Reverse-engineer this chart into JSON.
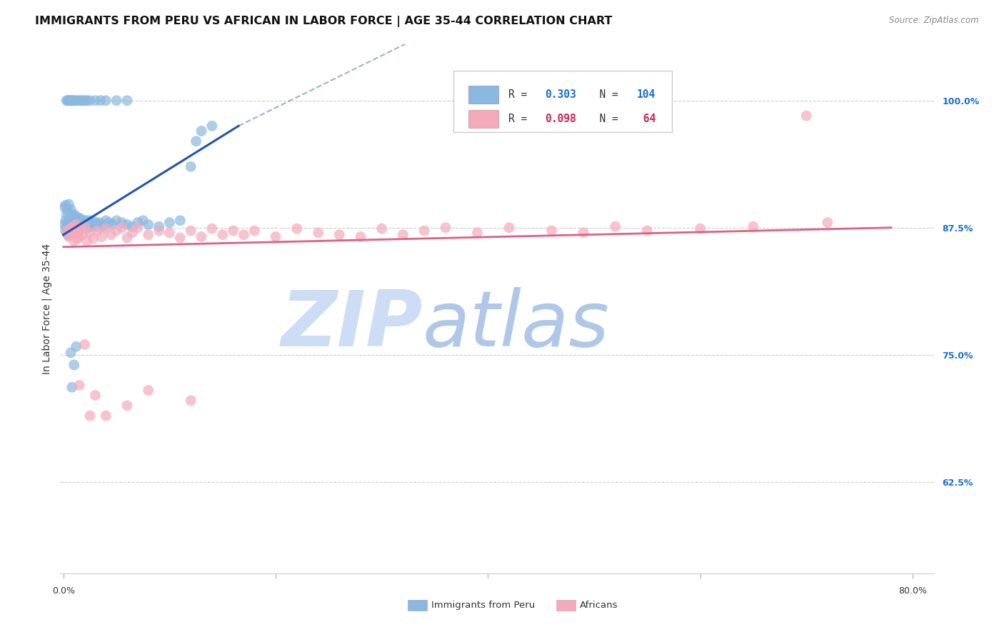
{
  "title": "IMMIGRANTS FROM PERU VS AFRICAN IN LABOR FORCE | AGE 35-44 CORRELATION CHART",
  "source_text": "Source: ZipAtlas.com",
  "ylabel": "In Labor Force | Age 35-44",
  "ytick_labels": [
    "62.5%",
    "75.0%",
    "87.5%",
    "100.0%"
  ],
  "ytick_values": [
    0.625,
    0.75,
    0.875,
    1.0
  ],
  "xlim": [
    -0.003,
    0.82
  ],
  "ylim": [
    0.535,
    1.055
  ],
  "legend_blue_R": "0.303",
  "legend_blue_N": "104",
  "legend_pink_R": "0.098",
  "legend_pink_N": " 64",
  "blue_color": "#8ab8e0",
  "pink_color": "#f5aabb",
  "blue_line_color": "#2255aa",
  "pink_line_color": "#e06080",
  "blue_R_color": "#1a70cc",
  "pink_R_color": "#cc2255",
  "watermark_zip_color": "#ccddf5",
  "watermark_atlas_color": "#b0c8e8",
  "title_fontsize": 11.5,
  "source_fontsize": 8.5,
  "axis_label_fontsize": 10,
  "tick_fontsize": 9,
  "ytick_color": "#1a70cc",
  "xtick_left_label": "0.0%",
  "xtick_right_label": "80.0%",
  "bottom_legend_blue_label": "Immigrants from Peru",
  "bottom_legend_pink_label": "Africans",
  "blue_scatter_x": [
    0.001,
    0.001,
    0.002,
    0.002,
    0.002,
    0.003,
    0.003,
    0.003,
    0.003,
    0.004,
    0.004,
    0.004,
    0.005,
    0.005,
    0.005,
    0.005,
    0.006,
    0.006,
    0.006,
    0.007,
    0.007,
    0.007,
    0.007,
    0.008,
    0.008,
    0.008,
    0.009,
    0.009,
    0.009,
    0.01,
    0.01,
    0.01,
    0.01,
    0.011,
    0.011,
    0.012,
    0.012,
    0.012,
    0.013,
    0.013,
    0.014,
    0.014,
    0.015,
    0.015,
    0.016,
    0.016,
    0.017,
    0.018,
    0.019,
    0.02,
    0.021,
    0.022,
    0.023,
    0.024,
    0.025,
    0.026,
    0.027,
    0.028,
    0.03,
    0.032,
    0.034,
    0.036,
    0.038,
    0.04,
    0.043,
    0.046,
    0.05,
    0.055,
    0.06,
    0.065,
    0.07,
    0.075,
    0.08,
    0.09,
    0.1,
    0.11,
    0.12,
    0.125,
    0.13,
    0.14,
    0.003,
    0.004,
    0.005,
    0.006,
    0.007,
    0.008,
    0.009,
    0.01,
    0.012,
    0.014,
    0.016,
    0.018,
    0.02,
    0.022,
    0.025,
    0.03,
    0.035,
    0.04,
    0.05,
    0.06,
    0.007,
    0.008,
    0.01,
    0.012
  ],
  "blue_scatter_y": [
    0.878,
    0.895,
    0.872,
    0.882,
    0.897,
    0.87,
    0.876,
    0.888,
    0.875,
    0.868,
    0.88,
    0.892,
    0.874,
    0.882,
    0.87,
    0.898,
    0.876,
    0.884,
    0.87,
    0.878,
    0.882,
    0.87,
    0.893,
    0.876,
    0.884,
    0.872,
    0.878,
    0.886,
    0.87,
    0.882,
    0.876,
    0.888,
    0.87,
    0.88,
    0.874,
    0.878,
    0.886,
    0.872,
    0.88,
    0.87,
    0.878,
    0.884,
    0.874,
    0.882,
    0.876,
    0.884,
    0.878,
    0.88,
    0.876,
    0.882,
    0.878,
    0.874,
    0.882,
    0.878,
    0.88,
    0.876,
    0.882,
    0.878,
    0.88,
    0.876,
    0.88,
    0.878,
    0.876,
    0.882,
    0.88,
    0.878,
    0.882,
    0.88,
    0.878,
    0.876,
    0.88,
    0.882,
    0.878,
    0.876,
    0.88,
    0.882,
    0.935,
    0.96,
    0.97,
    0.975,
    1.0,
    1.0,
    1.0,
    1.0,
    1.0,
    1.0,
    1.0,
    1.0,
    1.0,
    1.0,
    1.0,
    1.0,
    1.0,
    1.0,
    1.0,
    1.0,
    1.0,
    1.0,
    1.0,
    1.0,
    0.752,
    0.718,
    0.74,
    0.758
  ],
  "pink_scatter_x": [
    0.003,
    0.005,
    0.007,
    0.008,
    0.009,
    0.01,
    0.011,
    0.012,
    0.013,
    0.014,
    0.015,
    0.016,
    0.018,
    0.02,
    0.022,
    0.025,
    0.028,
    0.032,
    0.036,
    0.04,
    0.045,
    0.05,
    0.055,
    0.06,
    0.065,
    0.07,
    0.08,
    0.09,
    0.1,
    0.11,
    0.12,
    0.13,
    0.14,
    0.15,
    0.16,
    0.17,
    0.18,
    0.2,
    0.22,
    0.24,
    0.26,
    0.28,
    0.3,
    0.32,
    0.34,
    0.36,
    0.39,
    0.42,
    0.46,
    0.49,
    0.52,
    0.55,
    0.6,
    0.65,
    0.7,
    0.72,
    0.015,
    0.02,
    0.025,
    0.03,
    0.04,
    0.06,
    0.08,
    0.12
  ],
  "pink_scatter_y": [
    0.872,
    0.866,
    0.874,
    0.868,
    0.876,
    0.862,
    0.87,
    0.878,
    0.864,
    0.872,
    0.866,
    0.874,
    0.868,
    0.876,
    0.862,
    0.87,
    0.864,
    0.872,
    0.866,
    0.874,
    0.868,
    0.872,
    0.875,
    0.865,
    0.87,
    0.875,
    0.868,
    0.872,
    0.87,
    0.865,
    0.872,
    0.866,
    0.874,
    0.868,
    0.872,
    0.868,
    0.872,
    0.866,
    0.874,
    0.87,
    0.868,
    0.866,
    0.874,
    0.868,
    0.872,
    0.875,
    0.87,
    0.875,
    0.872,
    0.87,
    0.876,
    0.872,
    0.874,
    0.876,
    0.985,
    0.88,
    0.72,
    0.76,
    0.69,
    0.71,
    0.69,
    0.7,
    0.715,
    0.705
  ]
}
